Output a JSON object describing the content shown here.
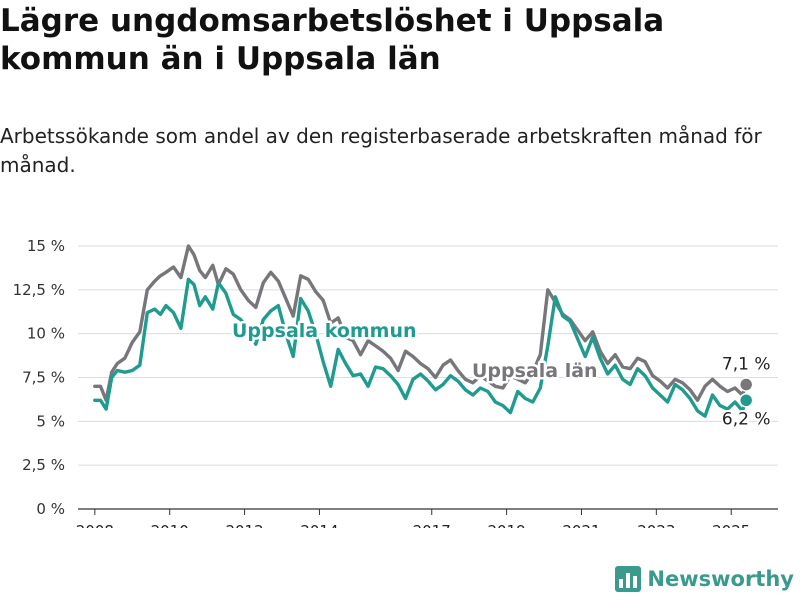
{
  "header": {
    "title": "Lägre ungdomsarbetslöshet i Uppsala kommun än i Uppsala län",
    "subtitle": "Arbetssökande som andel av den registerbaserade arbetskraften månad för månad."
  },
  "brand": {
    "name": "Newsworthy",
    "icon": "bar-chart-logo-icon",
    "color": "#3a9a8d"
  },
  "chart_data": {
    "type": "line",
    "title": "Lägre ungdomsarbetslöshet i Uppsala kommun än i Uppsala län",
    "subtitle": "Arbetssökande som andel av den registerbaserade arbetskraften månad för månad.",
    "xlabel": "",
    "ylabel": "",
    "xlim": [
      2007.55,
      2026.25
    ],
    "ylim": [
      0,
      15
    ],
    "yticks": [
      0,
      2.5,
      5,
      7.5,
      10,
      12.5,
      15
    ],
    "ytick_labels": [
      "0 %",
      "2,5 %",
      "5 %",
      "7,5 %",
      "10 %",
      "12,5 %",
      "15 %"
    ],
    "xticks": [
      2008,
      2010,
      2012,
      2014,
      2017,
      2019,
      2021,
      2023,
      2025
    ],
    "xtick_labels": [
      "2008",
      "2010",
      "2012",
      "2014",
      "2017",
      "2019",
      "2021",
      "2023",
      "2025"
    ],
    "grid": true,
    "legend": "inline labels",
    "series": [
      {
        "name": "Uppsala län",
        "color": "#77767b",
        "x": [
          2008.0,
          2008.15,
          2008.3,
          2008.45,
          2008.6,
          2008.8,
          2009.0,
          2009.2,
          2009.4,
          2009.6,
          2009.75,
          2009.9,
          2010.1,
          2010.3,
          2010.5,
          2010.65,
          2010.8,
          2010.95,
          2011.15,
          2011.3,
          2011.5,
          2011.7,
          2011.9,
          2012.1,
          2012.3,
          2012.5,
          2012.7,
          2012.9,
          2013.1,
          2013.3,
          2013.5,
          2013.7,
          2013.9,
          2014.1,
          2014.3,
          2014.5,
          2014.7,
          2014.9,
          2015.1,
          2015.3,
          2015.5,
          2015.7,
          2015.9,
          2016.1,
          2016.3,
          2016.5,
          2016.7,
          2016.9,
          2017.1,
          2017.3,
          2017.5,
          2017.7,
          2017.9,
          2018.1,
          2018.3,
          2018.5,
          2018.7,
          2018.9,
          2019.1,
          2019.3,
          2019.5,
          2019.7,
          2019.9,
          2020.1,
          2020.3,
          2020.5,
          2020.7,
          2020.9,
          2021.1,
          2021.3,
          2021.5,
          2021.7,
          2021.9,
          2022.1,
          2022.3,
          2022.5,
          2022.7,
          2022.9,
          2023.1,
          2023.3,
          2023.5,
          2023.7,
          2023.9,
          2024.1,
          2024.3,
          2024.5,
          2024.7,
          2024.9,
          2025.1,
          2025.3,
          2025.4
        ],
        "values": [
          7.0,
          7.0,
          6.2,
          7.8,
          8.3,
          8.6,
          9.5,
          10.1,
          12.5,
          13.0,
          13.3,
          13.5,
          13.8,
          13.2,
          15.0,
          14.5,
          13.6,
          13.2,
          13.9,
          12.8,
          13.7,
          13.4,
          12.5,
          11.9,
          11.5,
          12.9,
          13.5,
          13.0,
          12.0,
          11.0,
          13.3,
          13.1,
          12.4,
          11.9,
          10.6,
          10.9,
          9.8,
          9.6,
          8.8,
          9.6,
          9.3,
          9.0,
          8.6,
          7.9,
          9.0,
          8.7,
          8.3,
          8.0,
          7.5,
          8.2,
          8.5,
          7.9,
          7.4,
          7.2,
          7.6,
          7.3,
          7.0,
          6.9,
          7.6,
          7.4,
          7.2,
          7.8,
          8.8,
          12.5,
          11.8,
          11.1,
          10.8,
          10.2,
          9.6,
          10.1,
          9.0,
          8.3,
          8.8,
          8.1,
          8.0,
          8.6,
          8.4,
          7.6,
          7.3,
          6.9,
          7.4,
          7.2,
          6.8,
          6.2,
          7.0,
          7.4,
          7.0,
          6.7,
          6.9,
          6.5,
          7.1
        ]
      },
      {
        "name": "Uppsala kommun",
        "color": "#1f9b8f",
        "x": [
          2008.0,
          2008.15,
          2008.3,
          2008.45,
          2008.6,
          2008.8,
          2009.0,
          2009.2,
          2009.4,
          2009.6,
          2009.75,
          2009.9,
          2010.1,
          2010.3,
          2010.5,
          2010.65,
          2010.8,
          2010.95,
          2011.15,
          2011.3,
          2011.5,
          2011.7,
          2011.9,
          2012.1,
          2012.3,
          2012.5,
          2012.7,
          2012.9,
          2013.1,
          2013.3,
          2013.5,
          2013.7,
          2013.9,
          2014.1,
          2014.3,
          2014.5,
          2014.7,
          2014.9,
          2015.1,
          2015.3,
          2015.5,
          2015.7,
          2015.9,
          2016.1,
          2016.3,
          2016.5,
          2016.7,
          2016.9,
          2017.1,
          2017.3,
          2017.5,
          2017.7,
          2017.9,
          2018.1,
          2018.3,
          2018.5,
          2018.7,
          2018.9,
          2019.1,
          2019.3,
          2019.5,
          2019.7,
          2019.9,
          2020.1,
          2020.3,
          2020.5,
          2020.7,
          2020.9,
          2021.1,
          2021.3,
          2021.5,
          2021.7,
          2021.9,
          2022.1,
          2022.3,
          2022.5,
          2022.7,
          2022.9,
          2023.1,
          2023.3,
          2023.5,
          2023.7,
          2023.9,
          2024.1,
          2024.3,
          2024.5,
          2024.7,
          2024.9,
          2025.1,
          2025.3,
          2025.4
        ],
        "values": [
          6.2,
          6.2,
          5.7,
          7.5,
          7.9,
          7.8,
          7.9,
          8.2,
          11.2,
          11.4,
          11.1,
          11.6,
          11.2,
          10.3,
          13.1,
          12.8,
          11.6,
          12.1,
          11.4,
          12.9,
          12.3,
          11.1,
          10.8,
          10.2,
          9.4,
          10.8,
          11.3,
          11.6,
          10.0,
          8.7,
          12.0,
          11.3,
          10.0,
          8.4,
          7.0,
          9.1,
          8.3,
          7.6,
          7.7,
          7.0,
          8.1,
          8.0,
          7.6,
          7.1,
          6.3,
          7.4,
          7.7,
          7.3,
          6.8,
          7.1,
          7.6,
          7.3,
          6.8,
          6.5,
          6.9,
          6.7,
          6.1,
          5.9,
          5.5,
          6.7,
          6.3,
          6.1,
          6.9,
          9.3,
          12.1,
          11.0,
          10.7,
          9.7,
          8.7,
          9.8,
          8.6,
          7.7,
          8.2,
          7.4,
          7.1,
          8.0,
          7.6,
          6.9,
          6.5,
          6.1,
          7.1,
          6.8,
          6.3,
          5.6,
          5.3,
          6.5,
          5.9,
          5.7,
          6.1,
          5.6,
          6.2
        ]
      }
    ],
    "annotations": [
      {
        "series": "Uppsala län",
        "x": 2025.4,
        "y": 7.1,
        "text": "7,1 %"
      },
      {
        "series": "Uppsala kommun",
        "x": 2025.4,
        "y": 6.2,
        "text": "6,2 %"
      }
    ]
  }
}
